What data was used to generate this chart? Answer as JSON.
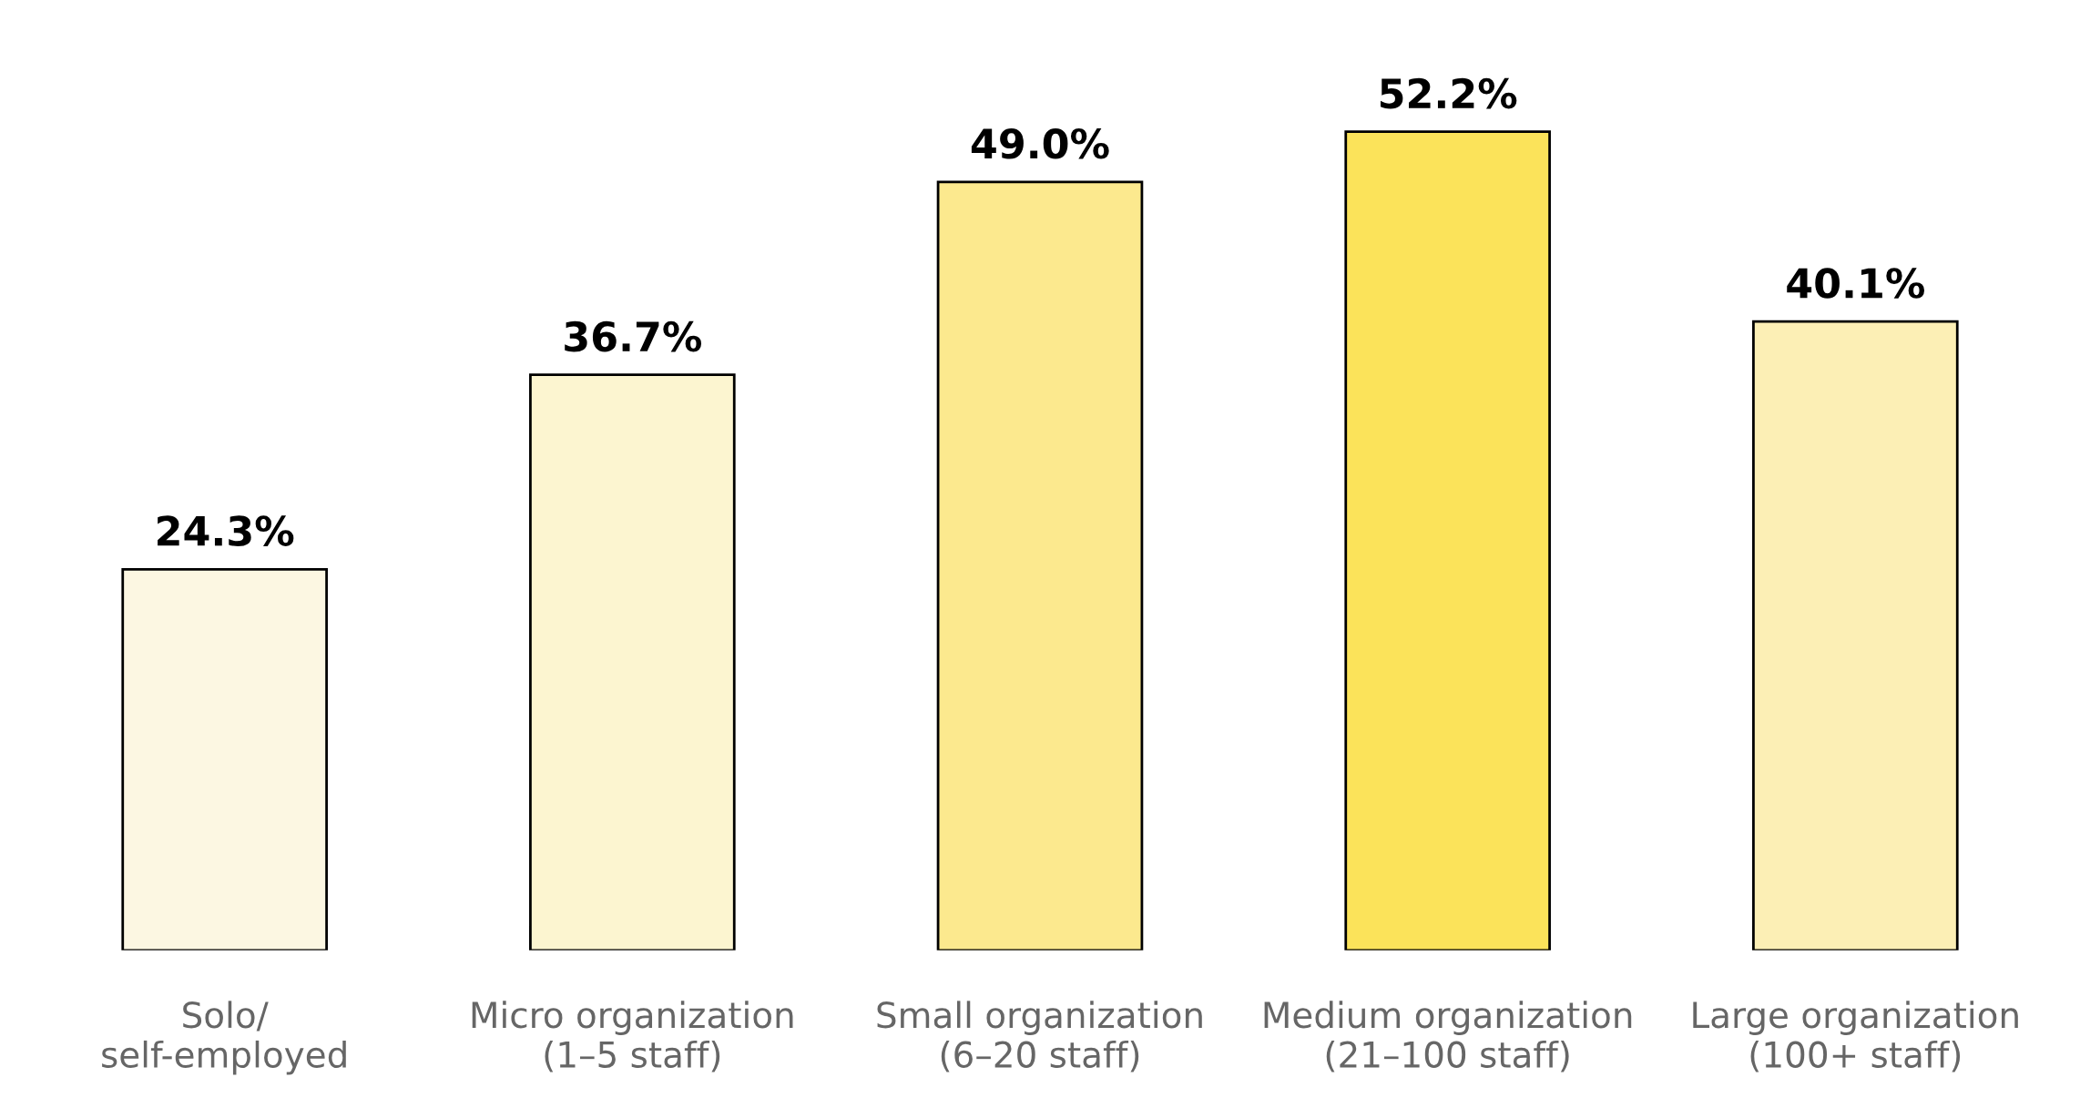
{
  "chart_data": {
    "type": "bar",
    "categories": [
      "Solo/\nself-employed",
      "Micro organization\n(1–5 staff)",
      "Small organization\n(6–20 staff)",
      "Medium organization\n(21–100 staff)",
      "Large organization\n(100+ staff)"
    ],
    "values": [
      24.3,
      36.7,
      49.0,
      52.2,
      40.1
    ],
    "value_labels": [
      "24.3%",
      "36.7%",
      "49.0%",
      "52.2%",
      "40.1%"
    ],
    "colors": [
      "#fcf7e2",
      "#fcf5d0",
      "#fce98e",
      "#fbe35a",
      "#fcefb5"
    ],
    "grid": false,
    "legend": false
  }
}
